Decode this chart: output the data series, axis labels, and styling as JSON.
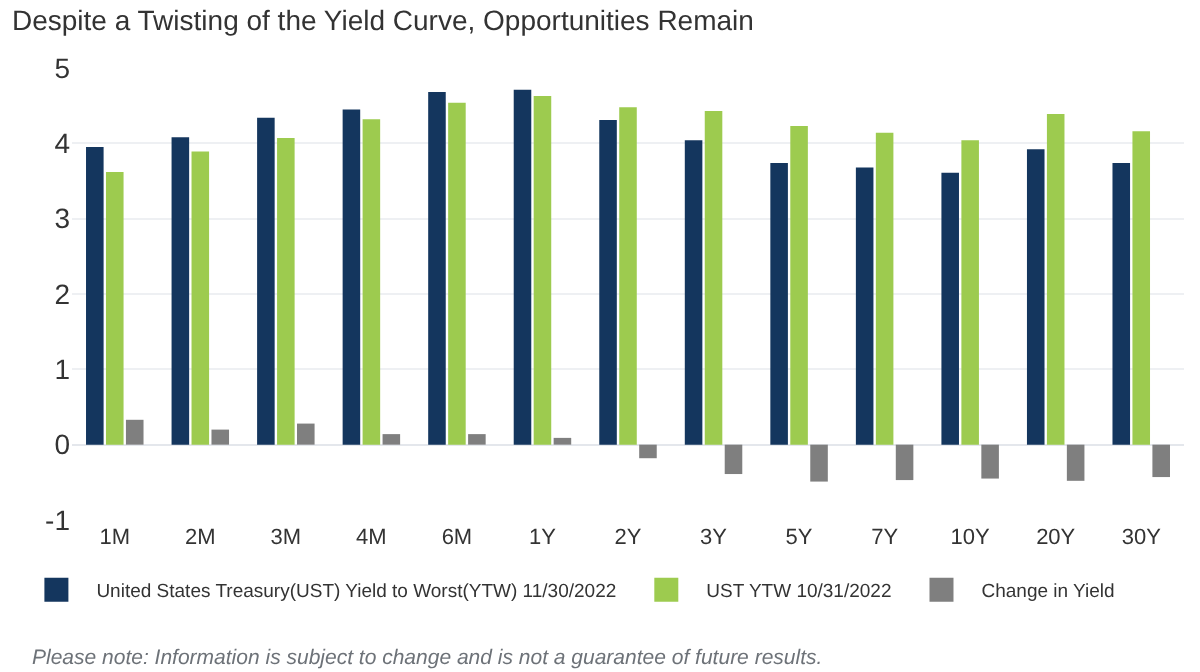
{
  "chart_data": {
    "type": "bar",
    "title": "Despite a Twisting of the Yield Curve, Opportunities Remain",
    "categories": [
      "1M",
      "2M",
      "3M",
      "4M",
      "6M",
      "1Y",
      "2Y",
      "3Y",
      "5Y",
      "7Y",
      "10Y",
      "20Y",
      "30Y"
    ],
    "series": [
      {
        "name": "United States Treasury(UST) Yield to Worst(YTW) 11/30/2022",
        "color": "#14365e",
        "values": [
          3.95,
          4.08,
          4.34,
          4.45,
          4.68,
          4.71,
          4.31,
          4.04,
          3.74,
          3.68,
          3.61,
          3.92,
          3.74
        ]
      },
      {
        "name": "UST YTW 10/31/2022",
        "color": "#9dcb4f",
        "values": [
          3.62,
          3.89,
          4.07,
          4.32,
          4.54,
          4.63,
          4.48,
          4.43,
          4.23,
          4.14,
          4.04,
          4.39,
          4.16
        ]
      },
      {
        "name": "Change in Yield",
        "color": "#7f7f7f",
        "values": [
          0.33,
          0.2,
          0.28,
          0.14,
          0.14,
          0.09,
          -0.18,
          -0.39,
          -0.49,
          -0.47,
          -0.45,
          -0.48,
          -0.43
        ]
      }
    ],
    "ylim": [
      -1,
      5
    ],
    "yticks": [
      -1,
      0,
      1,
      2,
      3,
      4,
      5
    ],
    "grid": "y",
    "legend": "bottom",
    "annotations": [
      "Please note: Information is subject to change and is not a guarantee of future results."
    ]
  }
}
